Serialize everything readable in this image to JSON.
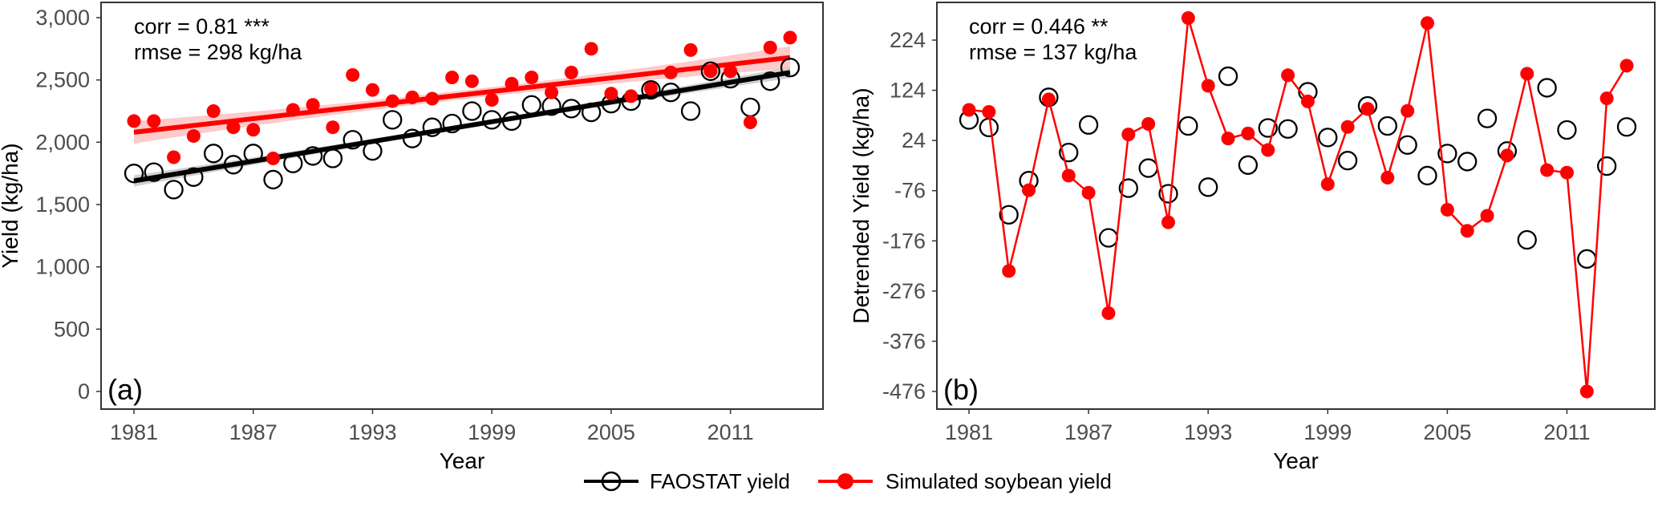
{
  "chart_data": [
    {
      "type": "scatter",
      "panel_label": "(a)",
      "xlabel": "Year",
      "ylabel": "Yield (kg/ha)",
      "xlim": [
        1981,
        2014
      ],
      "ylim": [
        0,
        3000
      ],
      "xticks": [
        1981,
        1987,
        1993,
        1999,
        2005,
        2011
      ],
      "yticks": [
        0,
        500,
        1000,
        1500,
        2000,
        2500,
        3000
      ],
      "ytick_labels": [
        "0",
        "500",
        "1,000",
        "1,500",
        "2,000",
        "2,500",
        "3,000"
      ],
      "annotation": [
        "corr = 0.81 ***",
        "rmse = 298 kg/ha"
      ],
      "years": [
        1981,
        1982,
        1983,
        1984,
        1985,
        1986,
        1987,
        1988,
        1989,
        1990,
        1991,
        1992,
        1993,
        1994,
        1995,
        1996,
        1997,
        1998,
        1999,
        2000,
        2001,
        2002,
        2003,
        2004,
        2005,
        2006,
        2007,
        2008,
        2009,
        2010,
        2011,
        2012,
        2013,
        2014
      ],
      "series": [
        {
          "name": "FAOSTAT yield",
          "color": "#000000",
          "marker": "open-circle",
          "values": [
            1750,
            1760,
            1620,
            1720,
            1910,
            1820,
            1910,
            1700,
            1830,
            1890,
            1870,
            2020,
            1930,
            2180,
            2030,
            2120,
            2150,
            2250,
            2180,
            2170,
            2300,
            2290,
            2270,
            2240,
            2310,
            2330,
            2420,
            2400,
            2250,
            2570,
            2510,
            2280,
            2490,
            2600
          ],
          "trend": {
            "start": 1690,
            "end": 2560,
            "ci_halfwidth_ends": 45,
            "ci_halfwidth_mid": 20,
            "band_color": "#bdbdbd"
          }
        },
        {
          "name": "Simulated soybean yield",
          "color": "#ff0000",
          "marker": "filled-circle",
          "values": [
            2170,
            2170,
            1880,
            2050,
            2250,
            2120,
            2100,
            1870,
            2260,
            2300,
            2120,
            2540,
            2420,
            2330,
            2360,
            2350,
            2520,
            2490,
            2340,
            2470,
            2520,
            2400,
            2560,
            2750,
            2390,
            2370,
            2430,
            2560,
            2740,
            2570,
            2570,
            2160,
            2760,
            2840
          ],
          "trend": {
            "start": 2080,
            "end": 2680,
            "ci_halfwidth_ends": 90,
            "ci_halfwidth_mid": 35,
            "band_color": "#ffb3b3"
          }
        }
      ]
    },
    {
      "type": "line",
      "panel_label": "(b)",
      "xlabel": "Year",
      "ylabel": "Detrended Yield (kg/ha)",
      "xlim": [
        1981,
        2014
      ],
      "ylim": [
        -476,
        268
      ],
      "xticks": [
        1981,
        1987,
        1993,
        1999,
        2005,
        2011
      ],
      "yticks": [
        -476,
        -376,
        -276,
        -176,
        -76,
        24,
        124,
        224
      ],
      "ytick_labels": [
        "-476",
        "-376",
        "-276",
        "-176",
        "-76",
        "24",
        "124",
        "224"
      ],
      "annotation": [
        "corr = 0.446 **",
        "rmse = 137 kg/ha"
      ],
      "years": [
        1981,
        1982,
        1983,
        1984,
        1985,
        1986,
        1987,
        1988,
        1989,
        1990,
        1991,
        1992,
        1993,
        1994,
        1995,
        1996,
        1997,
        1998,
        1999,
        2000,
        2001,
        2002,
        2003,
        2004,
        2005,
        2006,
        2007,
        2008,
        2009,
        2010,
        2011,
        2012,
        2013,
        2014
      ],
      "series": [
        {
          "name": "FAOSTAT yield",
          "color": "#000000",
          "marker": "open-circle",
          "line": false,
          "values": [
            65,
            50,
            -124,
            -56,
            110,
            0,
            55,
            -170,
            -71,
            -31,
            -82,
            53,
            -69,
            152,
            -25,
            49,
            47,
            121,
            30,
            -16,
            93,
            53,
            15,
            -46,
            -2,
            -18,
            68,
            3,
            -174,
            129,
            45,
            -212,
            -27,
            51
          ]
        },
        {
          "name": "Simulated soybean yield",
          "color": "#ff0000",
          "marker": "filled-circle",
          "line": true,
          "values": [
            85,
            81,
            -236,
            -75,
            106,
            -46,
            -80,
            -320,
            36,
            57,
            -139,
            268,
            133,
            28,
            38,
            5,
            154,
            102,
            -63,
            51,
            87,
            -50,
            83,
            258,
            -114,
            -156,
            -126,
            -6,
            157,
            -35,
            -40,
            -476,
            108,
            173
          ]
        }
      ]
    }
  ],
  "legend": {
    "placement": "bottom",
    "items": [
      {
        "label": "FAOSTAT yield",
        "color": "#000000",
        "marker": "open-circle"
      },
      {
        "label": "Simulated soybean yield",
        "color": "#ff0000",
        "marker": "filled-circle"
      }
    ]
  }
}
